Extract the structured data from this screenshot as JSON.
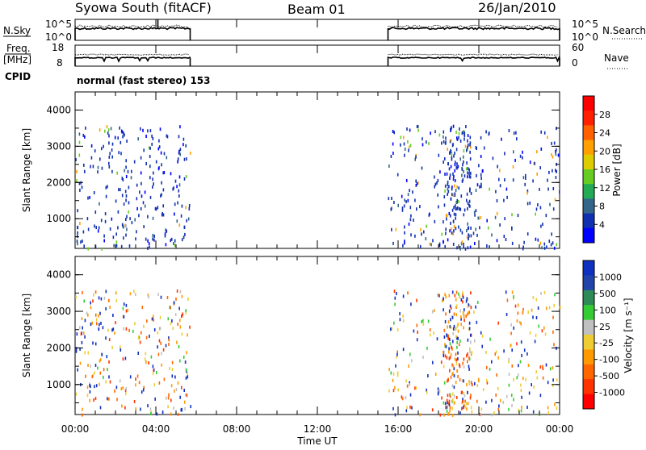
{
  "header": {
    "station": "Syowa South (fitACF)",
    "beam": "Beam 01",
    "date": "26/Jan/2010"
  },
  "chart_data": [
    {
      "type": "line",
      "panel": "noise",
      "left_label": "N.Sky",
      "right_label": "N.Search",
      "left_ticks": [
        "10^5",
        "10^0"
      ],
      "right_ticks": [
        "10^5",
        "10^0"
      ],
      "data_ranges_hours": [
        [
          0,
          5.7
        ],
        [
          15.5,
          24
        ]
      ]
    },
    {
      "type": "line",
      "panel": "frequency",
      "left_label_top": "Freq.",
      "left_label_bottom": "[MHz]",
      "right_label": "Nave",
      "left_ticks": [
        "18",
        "8"
      ],
      "right_ticks": [
        "60",
        "0"
      ],
      "cpid_label": "CPID",
      "cpid_text": "normal (fast stereo) 153"
    },
    {
      "type": "heatmap",
      "panel": "power",
      "ylabel": "Slant Range [km]",
      "ylim": [
        180,
        4500
      ],
      "yticks": [
        "4000",
        "3000",
        "2000",
        "1000"
      ],
      "colorbar_label": "Power [dB]",
      "colorbar_ticks": [
        "28",
        "24",
        "20",
        "16",
        "12",
        "8",
        "4"
      ],
      "colors": [
        "#0000ff",
        "#1030b0",
        "#336688",
        "#22aa55",
        "#66cc22",
        "#ddcc00",
        "#ffa000",
        "#ff6000",
        "#ff2000",
        "#ff0000"
      ],
      "data_windows_hours": [
        [
          0,
          5.7
        ],
        [
          15.5,
          24
        ]
      ]
    },
    {
      "type": "heatmap",
      "panel": "velocity",
      "ylabel": "Slant Range [km]",
      "ylim": [
        180,
        4500
      ],
      "yticks": [
        "4000",
        "3000",
        "2000",
        "1000"
      ],
      "colorbar_label": "Velocity [m s⁻¹]",
      "colorbar_ticks": [
        "1000",
        "500",
        "100",
        "25",
        "-25",
        "-100",
        "-500",
        "-1000"
      ],
      "colors": [
        "#1030c0",
        "#2244aa",
        "#2e8b57",
        "#33cc33",
        "#c0c0c0",
        "#eecc33",
        "#ff9900",
        "#ff6600",
        "#ff3300",
        "#ff0000"
      ],
      "data_windows_hours": [
        [
          0,
          5.7
        ],
        [
          15.5,
          24
        ]
      ]
    }
  ],
  "x_axis": {
    "ticks": [
      "00:00",
      "04:00",
      "08:00",
      "12:00",
      "16:00",
      "20:00",
      "00:00"
    ],
    "label": "Time UT",
    "range_hours": [
      0,
      24
    ]
  }
}
